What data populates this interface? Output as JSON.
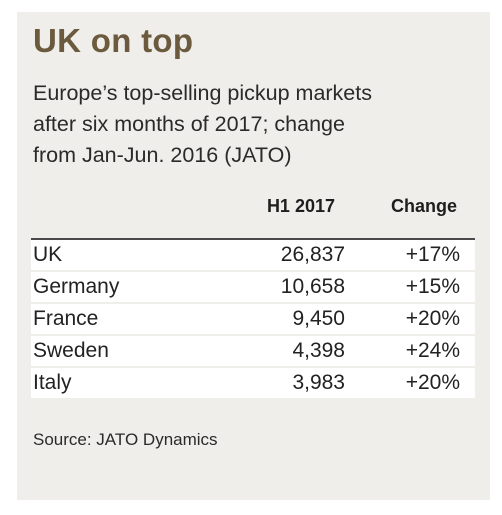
{
  "title": "UK on top",
  "subtitle": "Europe’s top-selling pickup markets\nafter six months of 2017; change\nfrom Jan-Jun. 2016 (JATO)",
  "source": "Source: JATO Dynamics",
  "chart_data": {
    "type": "table",
    "columns": [
      "H1 2017",
      "Change"
    ],
    "rows": [
      {
        "country": "UK",
        "h1_2017": "26,837",
        "change": "+17%"
      },
      {
        "country": "Germany",
        "h1_2017": "10,658",
        "change": "+15%"
      },
      {
        "country": "France",
        "h1_2017": "9,450",
        "change": "+20%"
      },
      {
        "country": "Sweden",
        "h1_2017": "4,398",
        "change": "+24%"
      },
      {
        "country": "Italy",
        "h1_2017": "3,983",
        "change": "+20%"
      }
    ]
  },
  "colors": {
    "background": "#efeeea",
    "title": "#6b5a3e",
    "table_rows": "#ffffff",
    "rule": "#4a4a4a"
  }
}
